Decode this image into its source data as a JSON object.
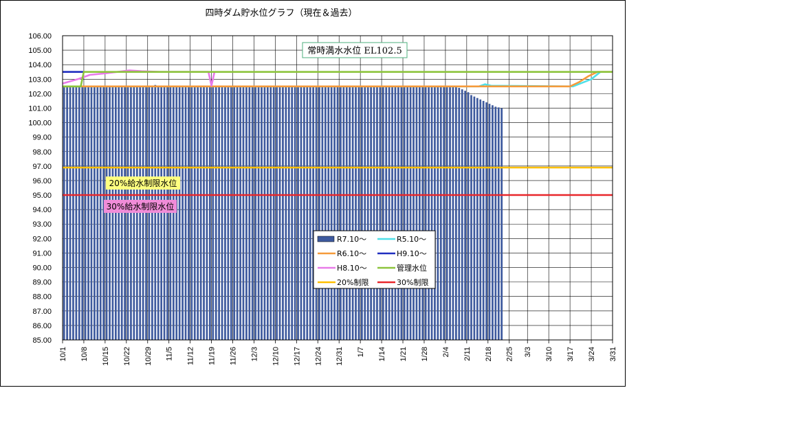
{
  "chart_data": {
    "type": "bar",
    "title": "四時ダム貯水位グラフ（現在＆過去）",
    "xlabel": "",
    "ylabel": "",
    "ylim": [
      85,
      106
    ],
    "yticks": [
      "85.00",
      "86.00",
      "87.00",
      "88.00",
      "89.00",
      "90.00",
      "91.00",
      "92.00",
      "93.00",
      "94.00",
      "95.00",
      "96.00",
      "97.00",
      "98.00",
      "99.00",
      "100.00",
      "101.00",
      "102.00",
      "103.00",
      "104.00",
      "105.00",
      "106.00"
    ],
    "xticks": [
      "10/1",
      "10/8",
      "10/15",
      "10/22",
      "10/29",
      "11/5",
      "11/12",
      "11/19",
      "11/26",
      "12/3",
      "12/10",
      "12/17",
      "12/24",
      "12/31",
      "1/7",
      "1/14",
      "1/21",
      "1/28",
      "2/4",
      "2/11",
      "2/18",
      "2/25",
      "3/3",
      "3/10",
      "3/17",
      "3/24",
      "3/31"
    ],
    "grid": "horizontal and vertical",
    "legend_position": "center-bottom",
    "bar_series": {
      "name": "R7.10～",
      "color": "#3E5A9E",
      "start": "10/1",
      "values_summary": "102.5 daily from 10/1 to 2/10, then declining",
      "values": [
        102.5,
        102.5,
        102.5,
        102.5,
        102.5,
        102.5,
        102.5,
        102.5,
        102.5,
        102.5,
        102.5,
        102.5,
        102.5,
        102.5,
        102.5,
        102.5,
        102.5,
        102.5,
        102.5,
        102.5,
        102.5,
        102.5,
        102.5,
        102.5,
        102.5,
        102.5,
        102.5,
        102.5,
        102.5,
        102.5,
        102.6,
        102.5,
        102.5,
        102.5,
        102.5,
        102.5,
        102.5,
        102.5,
        102.5,
        102.5,
        102.5,
        102.5,
        102.5,
        102.5,
        102.5,
        102.5,
        102.5,
        102.5,
        102.5,
        102.5,
        102.5,
        102.5,
        102.5,
        102.5,
        102.5,
        102.5,
        102.5,
        102.5,
        102.5,
        102.5,
        102.5,
        102.5,
        102.5,
        102.5,
        102.5,
        102.5,
        102.5,
        102.5,
        102.5,
        102.5,
        102.5,
        102.5,
        102.5,
        102.5,
        102.5,
        102.5,
        102.5,
        102.5,
        102.5,
        102.5,
        102.5,
        102.5,
        102.5,
        102.5,
        102.5,
        102.5,
        102.5,
        102.5,
        102.5,
        102.5,
        102.5,
        102.5,
        102.5,
        102.5,
        102.5,
        102.5,
        102.5,
        102.5,
        102.5,
        102.5,
        102.5,
        102.5,
        102.5,
        102.5,
        102.5,
        102.5,
        102.5,
        102.5,
        102.5,
        102.5,
        102.5,
        102.5,
        102.5,
        102.5,
        102.5,
        102.5,
        102.5,
        102.5,
        102.5,
        102.5,
        102.5,
        102.5,
        102.5,
        102.5,
        102.5,
        102.5,
        102.5,
        102.5,
        102.5,
        102.5,
        102.4,
        102.3,
        102.2,
        102.1,
        101.9,
        101.8,
        101.7,
        101.6,
        101.5,
        101.4,
        101.3,
        101.2,
        101.1,
        101.05,
        101.0
      ]
    },
    "series": [
      {
        "name": "R5.10～",
        "color": "#4FE0E8",
        "points": [
          [
            "10/1",
            102.5
          ],
          [
            "10/7",
            102.5
          ],
          [
            "2/15",
            102.5
          ],
          [
            "2/17",
            102.65
          ],
          [
            "2/19",
            102.55
          ],
          [
            "3/18",
            102.5
          ],
          [
            "3/21",
            102.75
          ],
          [
            "3/24",
            103.0
          ],
          [
            "3/27",
            103.5
          ]
        ]
      },
      {
        "name": "R6.10～",
        "color": "#F59A3A",
        "points": [
          [
            "10/1",
            102.5
          ],
          [
            "2/28",
            102.5
          ],
          [
            "3/17",
            102.5
          ],
          [
            "3/20",
            102.8
          ],
          [
            "3/23",
            103.2
          ],
          [
            "3/26",
            103.5
          ],
          [
            "3/31",
            103.5
          ]
        ]
      },
      {
        "name": "H9.10～",
        "color": "#1F2DBF",
        "points": [
          [
            "10/1",
            103.5
          ],
          [
            "10/8",
            103.5
          ]
        ]
      },
      {
        "name": "H8.10～",
        "color": "#E87AE8",
        "points": [
          [
            "10/1",
            102.7
          ],
          [
            "10/6",
            103.0
          ],
          [
            "10/10",
            103.3
          ],
          [
            "10/15",
            103.4
          ],
          [
            "10/19",
            103.5
          ],
          [
            "10/23",
            103.6
          ],
          [
            "10/27",
            103.55
          ],
          [
            "11/2",
            103.5
          ],
          [
            "11/18",
            103.5
          ],
          [
            "11/19",
            102.55
          ],
          [
            "11/20",
            103.5
          ]
        ]
      },
      {
        "name": "管理水位",
        "color": "#8CC43C",
        "points": [
          [
            "10/1",
            102.5
          ],
          [
            "10/7",
            102.5
          ],
          [
            "10/8",
            103.5
          ],
          [
            "3/31",
            103.5
          ]
        ]
      },
      {
        "name": "20%制限",
        "color": "#FFC000",
        "points": [
          [
            "10/1",
            96.9
          ],
          [
            "3/31",
            96.9
          ]
        ]
      },
      {
        "name": "30%制限",
        "color": "#E8262A",
        "points": [
          [
            "10/1",
            95.0
          ],
          [
            "3/31",
            95.0
          ]
        ]
      }
    ],
    "annotations": {
      "full_level": "常時満水水位 EL102.5",
      "limit20": "20%給水制限水位",
      "limit30": "30%給水制限水位"
    }
  }
}
